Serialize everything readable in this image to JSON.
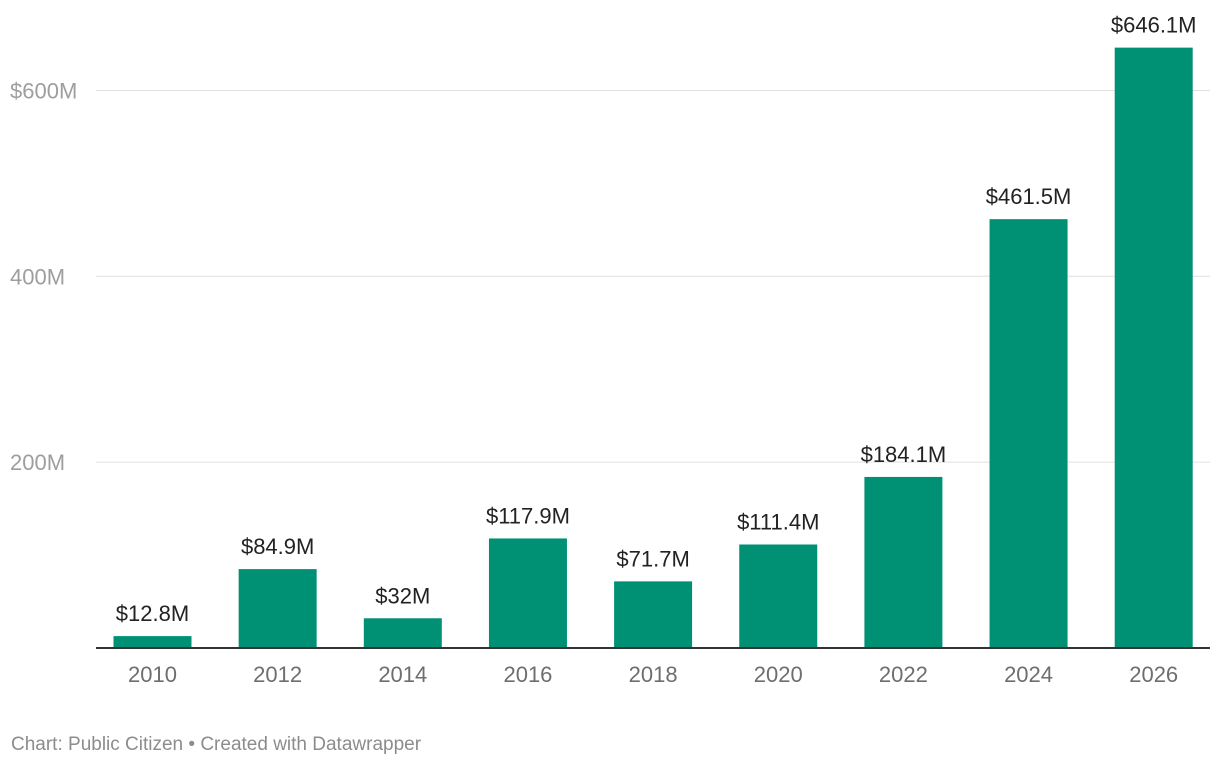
{
  "chart_data": {
    "type": "bar",
    "categories": [
      "2010",
      "2012",
      "2014",
      "2016",
      "2018",
      "2020",
      "2022",
      "2024",
      "2026"
    ],
    "values": [
      12.8,
      84.9,
      32,
      117.9,
      71.7,
      111.4,
      184.1,
      461.5,
      646.1
    ],
    "data_labels": [
      "$12.8M",
      "$84.9M",
      "$32M",
      "$117.9M",
      "$71.7M",
      "$111.4M",
      "$184.1M",
      "$461.5M",
      "$646.1M"
    ],
    "y_ticks": [
      {
        "value": 200,
        "label": "200M"
      },
      {
        "value": 400,
        "label": "400M"
      },
      {
        "value": 600,
        "label": "$600M"
      }
    ],
    "ylim": [
      0,
      646.1
    ],
    "title": "",
    "xlabel": "",
    "ylabel": "",
    "grid": true,
    "bar_color": "#009175"
  },
  "footer": {
    "credit": "Chart: Public Citizen • Created with Datawrapper"
  }
}
